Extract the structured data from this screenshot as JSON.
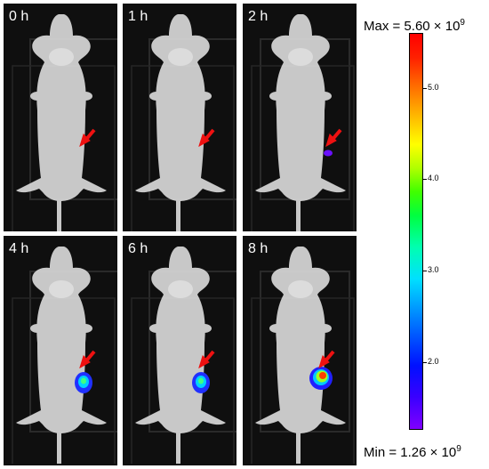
{
  "panels": [
    {
      "label": "0 h",
      "signal": 0
    },
    {
      "label": "1 h",
      "signal": 0
    },
    {
      "label": "2 h",
      "signal": 1
    },
    {
      "label": "4 h",
      "signal": 2
    },
    {
      "label": "6 h",
      "signal": 2
    },
    {
      "label": "8 h",
      "signal": 3
    }
  ],
  "scale": {
    "max_text": "Max = 5.60 × 10",
    "max_exp": "9",
    "min_text": "Min = 1.26 × 10",
    "min_exp": "9",
    "ticks": [
      {
        "label": "5.0",
        "value": 5.0
      },
      {
        "label": "4.0",
        "value": 4.0
      },
      {
        "label": "3.0",
        "value": 3.0
      },
      {
        "label": "2.0",
        "value": 2.0
      }
    ],
    "min": 1.26,
    "max": 5.6
  },
  "colors": {
    "arrow": "#ee1111",
    "panel_bg": "#0f0f0f",
    "mouse": "#d8d8d8"
  }
}
